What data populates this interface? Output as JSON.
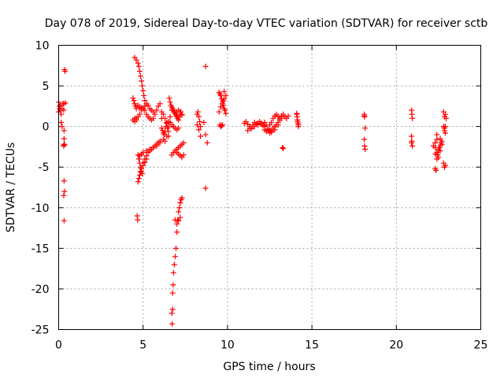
{
  "chart_data": {
    "type": "scatter",
    "title": "Day 078 of 2019, Sidereal Day-to-day VTEC variation (SDTVAR) for receiver sctb",
    "xlabel": "GPS time / hours",
    "ylabel": "SDTVAR / TECUs",
    "xlim": [
      0,
      25
    ],
    "ylim": [
      -25,
      10
    ],
    "xticks": [
      0,
      5,
      10,
      15,
      20,
      25
    ],
    "yticks": [
      -25,
      -20,
      -15,
      -10,
      -5,
      0,
      5,
      10
    ],
    "xtick_labels": [
      "0",
      "5",
      "10",
      "15",
      "20",
      "25"
    ],
    "ytick_labels": [
      "-25",
      "-20",
      "-15",
      "-10",
      "-5",
      "0",
      "5",
      "10"
    ],
    "grid": true,
    "marker": "+",
    "color": "#ff0000",
    "series": [
      {
        "name": "sdtvar",
        "x": [
          0.0,
          0.05,
          0.1,
          0.15,
          0.2,
          0.25,
          0.3,
          0.0,
          0.05,
          0.1,
          0.15,
          0.2,
          0.3,
          0.32,
          0.32,
          0.34,
          0.3,
          0.32,
          0.34,
          0.3,
          0.32,
          0.35,
          0.38,
          0.4,
          0.3,
          0.35,
          4.4,
          4.45,
          4.5,
          4.55,
          4.6,
          4.5,
          4.6,
          4.7,
          4.8,
          4.9,
          5.0,
          5.1,
          5.2,
          5.3,
          5.4,
          5.5,
          5.6,
          4.4,
          4.5,
          4.6,
          4.7,
          4.8,
          4.9,
          5.0,
          5.1,
          5.2,
          5.3,
          5.4,
          5.5,
          5.6,
          5.7,
          5.8,
          5.9,
          6.0,
          6.1,
          4.5,
          4.6,
          4.7,
          4.75,
          4.8,
          4.85,
          4.9,
          4.95,
          5.0,
          5.05,
          5.1,
          4.7,
          4.75,
          4.8,
          4.85,
          4.9,
          4.95,
          5.0,
          5.1,
          5.2,
          5.3,
          5.4,
          5.5,
          5.6,
          5.7,
          5.8,
          5.9,
          6.0,
          4.7,
          4.75,
          4.8,
          4.85,
          4.9,
          5.0,
          5.1,
          5.2,
          4.65,
          4.68,
          4.8,
          4.9,
          5.0,
          5.2,
          5.4,
          5.6,
          5.8,
          6.0,
          6.1,
          6.15,
          6.2,
          6.25,
          6.3,
          6.35,
          6.4,
          6.45,
          6.5,
          6.1,
          6.2,
          6.3,
          6.4,
          6.5,
          6.2,
          6.3,
          6.4,
          6.5,
          6.55,
          6.6,
          6.65,
          6.7,
          6.75,
          6.8,
          6.85,
          6.9,
          6.95,
          7.0,
          7.05,
          7.1,
          7.15,
          7.2,
          7.25,
          7.3,
          6.7,
          6.8,
          6.9,
          7.0,
          7.1,
          7.2,
          7.3,
          7.4,
          7.0,
          7.1,
          7.2,
          7.3,
          7.4,
          6.6,
          6.7,
          6.8,
          6.9,
          7.0,
          7.1,
          6.9,
          7.0,
          7.1,
          7.2,
          7.3,
          6.75,
          6.78,
          6.8,
          6.85,
          6.9,
          6.95,
          7.0,
          7.05,
          7.1,
          7.15,
          7.2,
          7.25,
          7.3,
          6.7,
          6.72,
          6.75,
          6.9,
          7.0,
          7.1,
          7.2,
          6.5,
          6.6,
          6.7,
          8.2,
          8.25,
          8.3,
          8.35,
          8.4,
          8.2,
          8.3,
          8.4,
          8.6,
          8.7,
          8.8,
          8.7,
          8.7,
          9.5,
          9.55,
          9.6,
          9.65,
          9.7,
          9.75,
          9.8,
          9.85,
          9.9,
          9.5,
          9.6,
          9.7,
          9.8,
          9.9,
          9.55,
          9.6,
          9.65,
          9.7,
          9.75,
          9.8,
          11.0,
          11.1,
          11.2,
          11.3,
          11.4,
          11.5,
          11.6,
          11.7,
          11.8,
          11.9,
          12.0,
          12.1,
          12.2,
          12.3,
          12.4,
          12.5,
          12.6,
          12.7,
          12.8,
          12.9,
          13.0,
          13.1,
          13.2,
          11.2,
          11.4,
          11.6,
          11.8,
          12.0,
          12.2,
          12.4,
          12.6,
          12.8,
          13.0,
          12.5,
          12.6,
          12.7,
          12.8,
          12.9,
          13.0,
          13.1,
          13.2,
          13.3,
          13.4,
          13.5,
          13.6,
          13.3,
          13.25,
          12.2,
          12.3,
          12.4,
          12.5,
          14.1,
          14.12,
          14.15,
          14.18,
          14.2,
          14.1,
          14.15,
          14.2,
          18.1,
          18.12,
          18.15,
          18.1,
          18.12,
          18.15,
          18.1,
          20.9,
          20.92,
          20.95,
          20.9,
          20.92,
          20.95,
          20.9,
          22.3,
          22.35,
          22.4,
          22.45,
          22.5,
          22.55,
          22.6,
          22.65,
          22.7,
          22.3,
          22.4,
          22.5,
          22.6,
          22.7,
          22.2,
          22.3,
          22.4,
          22.5,
          22.3,
          22.4,
          22.6,
          22.8,
          22.85,
          22.9,
          22.95,
          22.8,
          22.85,
          22.9,
          22.8,
          22.85,
          22.9,
          22.85,
          22.9
        ],
        "y": [
          3.0,
          2.5,
          2.0,
          1.5,
          2.2,
          2.8,
          2.0,
          1.8,
          2.2,
          2.6,
          0.5,
          0.0,
          2.8,
          -0.5,
          -1.5,
          -2.2,
          -2.4,
          -6.7,
          -8.0,
          -8.5,
          -11.6,
          7.0,
          6.8,
          2.9,
          -2.3,
          -2.2,
          3.5,
          3.2,
          2.8,
          2.5,
          2.2,
          1.0,
          0.8,
          2.6,
          2.4,
          2.3,
          2.2,
          2.5,
          2.8,
          2.6,
          2.2,
          2.0,
          1.8,
          0.8,
          0.6,
          1.0,
          1.2,
          1.5,
          2.0,
          2.2,
          2.0,
          1.5,
          1.2,
          1.0,
          0.8,
          1.0,
          1.5,
          2.0,
          2.5,
          2.8,
          1.0,
          8.5,
          8.2,
          7.8,
          7.4,
          6.8,
          6.2,
          5.6,
          5.0,
          4.4,
          3.8,
          3.2,
          -3.5,
          -4.0,
          -4.5,
          -5.0,
          -5.5,
          -5.8,
          -4.5,
          -4.0,
          -3.6,
          -3.2,
          -3.0,
          -2.8,
          -2.6,
          -2.4,
          -2.2,
          -2.0,
          -1.8,
          -6.8,
          -6.4,
          -6.0,
          -5.6,
          -5.2,
          -4.8,
          -4.4,
          -4.0,
          -11.0,
          -11.5,
          -3.6,
          -3.4,
          -3.2,
          -3.0,
          -2.8,
          -2.6,
          -2.4,
          -2.0,
          -0.2,
          -0.5,
          -0.8,
          -1.0,
          -0.6,
          0.0,
          0.4,
          -0.2,
          -1.2,
          1.8,
          1.5,
          1.0,
          0.5,
          0.0,
          -1.6,
          -1.8,
          -1.2,
          -0.6,
          3.5,
          3.0,
          2.6,
          2.4,
          2.2,
          2.0,
          1.8,
          1.6,
          1.4,
          1.2,
          1.0,
          0.8,
          1.2,
          1.5,
          1.8,
          1.4,
          -3.5,
          -3.2,
          -3.0,
          -2.8,
          -2.6,
          -2.4,
          -2.2,
          -2.0,
          -3.2,
          -3.4,
          -3.6,
          -3.8,
          -3.5,
          0.5,
          0.2,
          0.0,
          -0.2,
          -0.4,
          -0.2,
          1.6,
          1.8,
          2.0,
          1.8,
          1.5,
          -20.5,
          -19.5,
          -18.0,
          -17.0,
          -16.0,
          -15.0,
          -13.0,
          -11.5,
          -10.5,
          -10.0,
          -9.4,
          -9.0,
          -8.8,
          -23.0,
          -24.3,
          -22.5,
          -11.5,
          -12.0,
          -11.6,
          -11.2,
          0.6,
          1.2,
          2.0,
          1.5,
          1.8,
          1.2,
          0.6,
          0.0,
          0.2,
          -0.4,
          -1.2,
          0.5,
          -1.0,
          -2.0,
          7.4,
          -7.6,
          4.2,
          4.0,
          3.8,
          3.4,
          3.0,
          2.6,
          2.2,
          2.0,
          1.6,
          1.8,
          2.4,
          2.8,
          3.4,
          3.8,
          0.2,
          0.0,
          0.1,
          0.2,
          3.2,
          4.3,
          0.4,
          0.6,
          0.3,
          0.0,
          -0.2,
          0.2,
          0.5,
          0.3,
          0.4,
          0.6,
          0.3,
          0.1,
          0.0,
          0.2,
          -0.5,
          -0.8,
          -0.6,
          -0.2,
          0.0,
          0.2,
          0.5,
          0.8,
          1.0,
          -0.5,
          -0.3,
          0.0,
          0.2,
          0.4,
          0.5,
          -0.4,
          -0.7,
          -0.4,
          0.2,
          0.2,
          0.5,
          1.0,
          1.3,
          1.5,
          1.2,
          1.0,
          1.3,
          1.5,
          1.2,
          1.0,
          1.3,
          -2.7,
          -2.6,
          -0.4,
          -0.6,
          -0.3,
          -0.5,
          1.6,
          1.2,
          0.8,
          0.4,
          0.0,
          1.5,
          0.6,
          0.2,
          1.5,
          1.2,
          -0.2,
          -1.6,
          -2.4,
          -2.8,
          1.3,
          2.0,
          1.5,
          1.0,
          -1.2,
          -1.8,
          -2.4,
          -2.0,
          -5.2,
          -5.4,
          -4.0,
          -3.5,
          -3.0,
          -2.6,
          -2.3,
          -2.0,
          -1.8,
          -2.6,
          -3.2,
          -3.8,
          -3.0,
          -2.2,
          -2.4,
          -2.0,
          -1.6,
          -2.8,
          -3.4,
          -1.0,
          -1.5,
          1.8,
          1.2,
          1.5,
          1.0,
          0.0,
          -0.5,
          -0.8,
          -4.5,
          -5.0,
          -4.8,
          -0.2,
          0.0
        ]
      }
    ]
  }
}
